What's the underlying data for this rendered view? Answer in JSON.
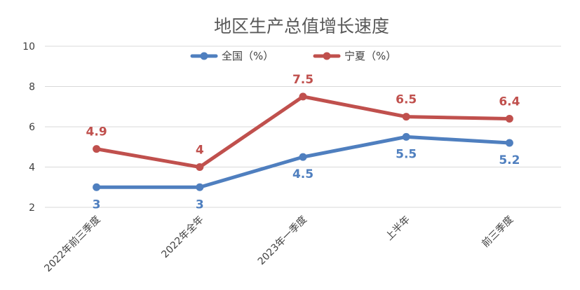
{
  "chart_data": {
    "type": "line",
    "title": "地区生产总值增长速度",
    "categories": [
      "2022年前三季度",
      "2022年全年",
      "2023年一季度",
      "上半年",
      "前三季度"
    ],
    "ylim": [
      2,
      10
    ],
    "yticks": [
      2,
      4,
      6,
      8,
      10
    ],
    "grid": true,
    "legend_position": "top",
    "series": [
      {
        "name": "全国（%）",
        "color": "#4F7FBF",
        "values": [
          3,
          3,
          4.5,
          5.5,
          5.2
        ],
        "labels": [
          "3",
          "3",
          "4.5",
          "5.5",
          "5.2"
        ]
      },
      {
        "name": "宁夏（%）",
        "color": "#C0504D",
        "values": [
          4.9,
          4,
          7.5,
          6.5,
          6.4
        ],
        "labels": [
          "4.9",
          "4",
          "7.5",
          "6.5",
          "6.4"
        ]
      }
    ]
  }
}
